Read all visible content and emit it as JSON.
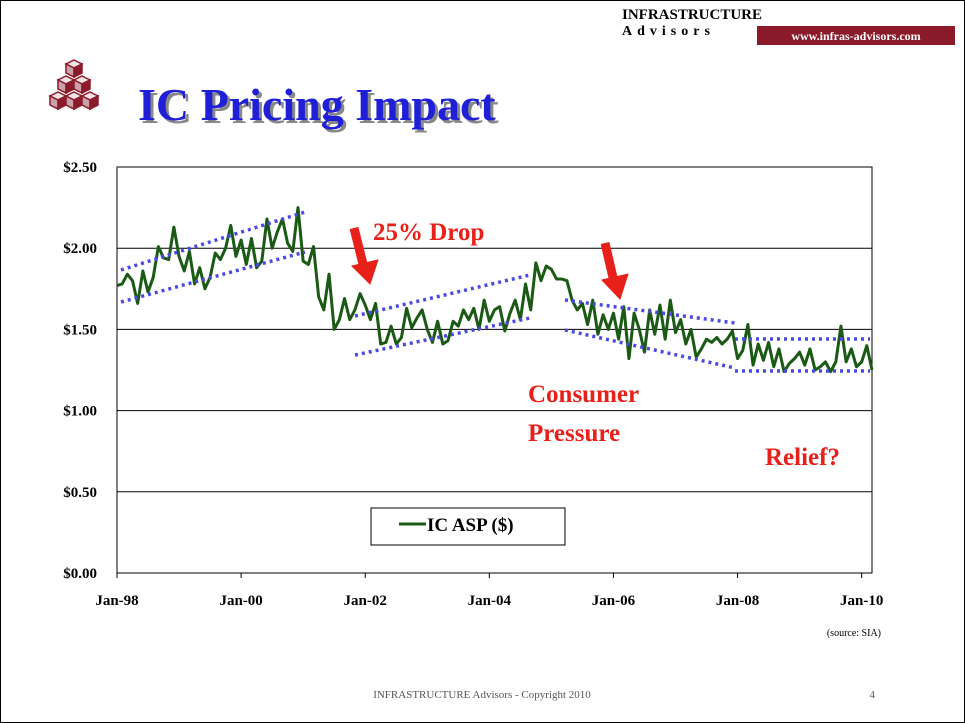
{
  "header": {
    "brand": "INFRASTRUCTURE",
    "brand_sub": "Advisors",
    "url": "www.infras-advisors.com"
  },
  "footer": {
    "text": "INFRASTRUCTURE Advisors - Copyright 2010",
    "page": 4
  },
  "chart_data": {
    "type": "line",
    "title": "IC Pricing Impact",
    "source": "(source: SIA)",
    "annotations": [
      "25% Drop",
      "Consumer",
      "Pressure",
      "Relief?"
    ],
    "x": [
      "1998-01",
      "1998-02",
      "1998-03",
      "1998-04",
      "1998-05",
      "1998-06",
      "1998-07",
      "1998-08",
      "1998-09",
      "1998-10",
      "1998-11",
      "1998-12",
      "1999-01",
      "1999-02",
      "1999-03",
      "1999-04",
      "1999-05",
      "1999-06",
      "1999-07",
      "1999-08",
      "1999-09",
      "1999-10",
      "1999-11",
      "1999-12",
      "2000-01",
      "2000-02",
      "2000-03",
      "2000-04",
      "2000-05",
      "2000-06",
      "2000-07",
      "2000-08",
      "2000-09",
      "2000-10",
      "2000-11",
      "2000-12",
      "2001-01",
      "2001-02",
      "2001-03",
      "2001-04",
      "2001-05",
      "2001-06",
      "2001-07",
      "2001-08",
      "2001-09",
      "2001-10",
      "2001-11",
      "2001-12",
      "2002-01",
      "2002-02",
      "2002-03",
      "2002-04",
      "2002-05",
      "2002-06",
      "2002-07",
      "2002-08",
      "2002-09",
      "2002-10",
      "2002-11",
      "2002-12",
      "2003-01",
      "2003-02",
      "2003-03",
      "2003-04",
      "2003-05",
      "2003-06",
      "2003-07",
      "2003-08",
      "2003-09",
      "2003-10",
      "2003-11",
      "2003-12",
      "2004-01",
      "2004-02",
      "2004-03",
      "2004-04",
      "2004-05",
      "2004-06",
      "2004-07",
      "2004-08",
      "2004-09",
      "2004-10",
      "2004-11",
      "2004-12",
      "2005-01",
      "2005-02",
      "2005-03",
      "2005-04",
      "2005-05",
      "2005-06",
      "2005-07",
      "2005-08",
      "2005-09",
      "2005-10",
      "2005-11",
      "2005-12",
      "2006-01",
      "2006-02",
      "2006-03",
      "2006-04",
      "2006-05",
      "2006-06",
      "2006-07",
      "2006-08",
      "2006-09",
      "2006-10",
      "2006-11",
      "2006-12",
      "2007-01",
      "2007-02",
      "2007-03",
      "2007-04",
      "2007-05",
      "2007-06",
      "2007-07",
      "2007-08",
      "2007-09",
      "2007-10",
      "2007-11",
      "2007-12",
      "2008-01",
      "2008-02",
      "2008-03",
      "2008-04",
      "2008-05",
      "2008-06",
      "2008-07",
      "2008-08",
      "2008-09",
      "2008-10",
      "2008-11",
      "2008-12",
      "2009-01",
      "2009-02",
      "2009-03",
      "2009-04",
      "2009-05",
      "2009-06",
      "2009-07",
      "2009-08",
      "2009-09",
      "2009-10",
      "2009-11",
      "2009-12",
      "2010-01",
      "2010-02",
      "2010-03"
    ],
    "series": [
      {
        "name": "IC ASP ($)",
        "color": "#1a5a14",
        "values": [
          1.77,
          1.78,
          1.84,
          1.8,
          1.66,
          1.86,
          1.73,
          1.82,
          2.01,
          1.94,
          1.93,
          2.13,
          1.95,
          1.86,
          1.98,
          1.78,
          1.88,
          1.75,
          1.82,
          1.97,
          1.93,
          2.0,
          2.14,
          1.95,
          2.05,
          1.9,
          2.06,
          1.88,
          1.92,
          2.18,
          2.0,
          2.1,
          2.18,
          2.03,
          1.98,
          2.25,
          1.92,
          1.9,
          2.01,
          1.7,
          1.62,
          1.84,
          1.5,
          1.56,
          1.69,
          1.56,
          1.62,
          1.72,
          1.65,
          1.56,
          1.66,
          1.41,
          1.42,
          1.52,
          1.41,
          1.45,
          1.63,
          1.51,
          1.57,
          1.62,
          1.5,
          1.42,
          1.55,
          1.41,
          1.43,
          1.55,
          1.52,
          1.62,
          1.56,
          1.63,
          1.5,
          1.68,
          1.55,
          1.62,
          1.64,
          1.49,
          1.6,
          1.68,
          1.56,
          1.78,
          1.62,
          1.91,
          1.8,
          1.89,
          1.87,
          1.81,
          1.81,
          1.8,
          1.68,
          1.62,
          1.66,
          1.53,
          1.68,
          1.47,
          1.59,
          1.5,
          1.6,
          1.44,
          1.64,
          1.32,
          1.6,
          1.5,
          1.36,
          1.62,
          1.47,
          1.65,
          1.44,
          1.68,
          1.48,
          1.56,
          1.41,
          1.5,
          1.33,
          1.38,
          1.44,
          1.42,
          1.45,
          1.41,
          1.44,
          1.49,
          1.32,
          1.37,
          1.53,
          1.28,
          1.41,
          1.31,
          1.42,
          1.27,
          1.38,
          1.24,
          1.29,
          1.32,
          1.36,
          1.28,
          1.38,
          1.25,
          1.27,
          1.3,
          1.24,
          1.3,
          1.52,
          1.3,
          1.38,
          1.27,
          1.3,
          1.4,
          1.25
        ]
      }
    ],
    "xlim": [
      "1998-01",
      "2010-03"
    ],
    "xticks": [
      {
        "value": "1998-01",
        "label": "Jan-98"
      },
      {
        "value": "2000-01",
        "label": "Jan-00"
      },
      {
        "value": "2002-01",
        "label": "Jan-02"
      },
      {
        "value": "2004-01",
        "label": "Jan-04"
      },
      {
        "value": "2006-01",
        "label": "Jan-06"
      },
      {
        "value": "2008-01",
        "label": "Jan-08"
      },
      {
        "value": "2010-01",
        "label": "Jan-10"
      }
    ],
    "ylim": [
      0,
      2.5
    ],
    "yticks": [
      {
        "value": 0,
        "label": "$0.00"
      },
      {
        "value": 0.5,
        "label": "$0.50"
      },
      {
        "value": 1,
        "label": "$1.00"
      },
      {
        "value": 1.5,
        "label": "$1.50"
      },
      {
        "value": 2,
        "label": "$2.00"
      },
      {
        "value": 2.5,
        "label": "$2.50"
      }
    ],
    "grid": true
  }
}
